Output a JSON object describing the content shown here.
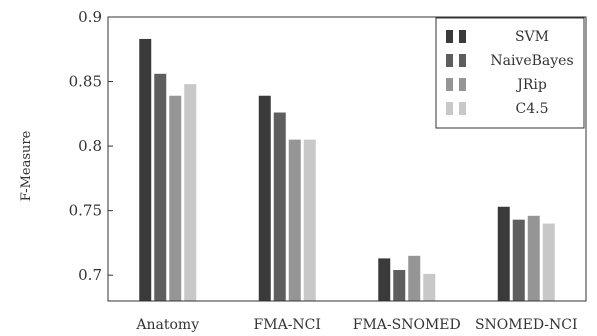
{
  "chart_data": {
    "type": "bar",
    "categories": [
      "Anatomy",
      "FMA-NCI",
      "FMA-SNOMED",
      "SNOMED-NCI"
    ],
    "series": [
      {
        "name": "SVM",
        "color": "#3a3a3a",
        "values": [
          0.883,
          0.839,
          0.713,
          0.753
        ]
      },
      {
        "name": "NaiveBayes",
        "color": "#5e5e5e",
        "values": [
          0.856,
          0.826,
          0.704,
          0.743
        ]
      },
      {
        "name": "JRip",
        "color": "#959595",
        "values": [
          0.839,
          0.805,
          0.715,
          0.746
        ]
      },
      {
        "name": "C4.5",
        "color": "#c8c8c8",
        "values": [
          0.848,
          0.805,
          0.701,
          0.74
        ]
      }
    ],
    "ylabel": "F-Measure",
    "ylim": [
      0.68,
      0.9
    ],
    "yticks": [
      0.7,
      0.75,
      0.8,
      0.85,
      0.9
    ],
    "ytick_labels": [
      "0.7",
      "0.75",
      "0.8",
      "0.85",
      "0.9"
    ],
    "grid": false,
    "legend_position": "top-right"
  }
}
